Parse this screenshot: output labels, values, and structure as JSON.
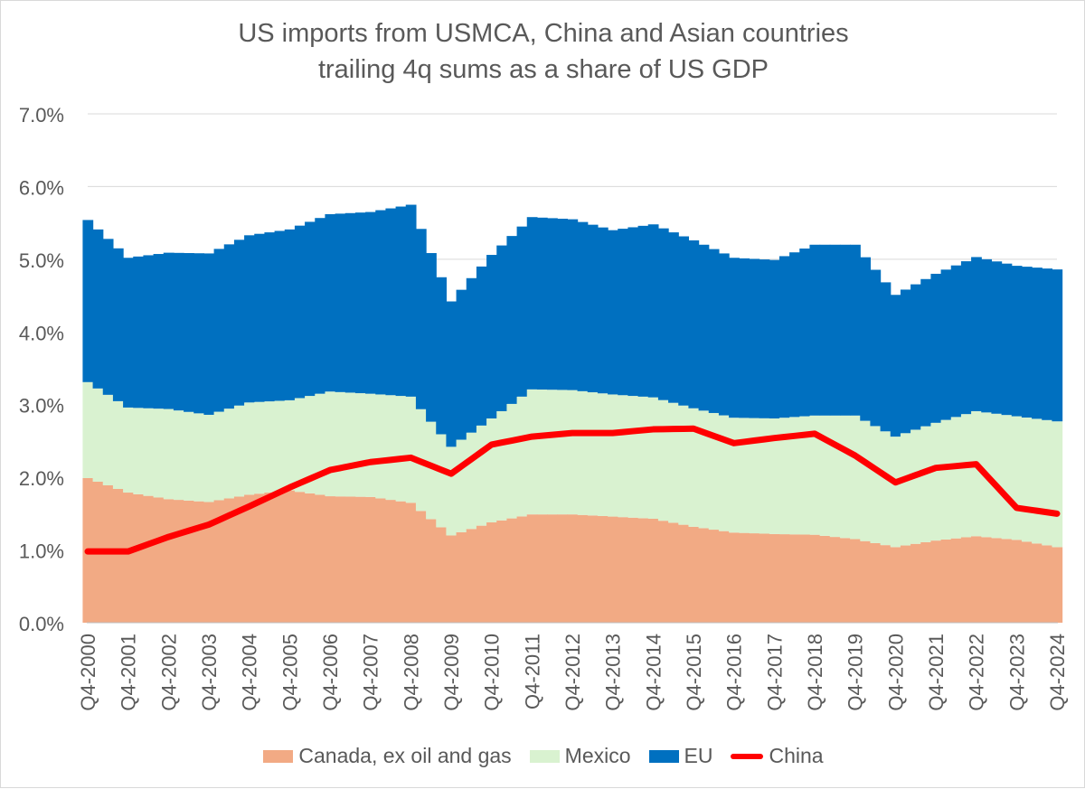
{
  "chart_data": {
    "type": "area",
    "title": "US imports from USMCA, China and Asian countries",
    "subtitle": "trailing 4q sums as a share of US GDP",
    "y_ticks": [
      "0.0%",
      "1.0%",
      "2.0%",
      "3.0%",
      "4.0%",
      "5.0%",
      "6.0%",
      "7.0%"
    ],
    "ylim": [
      0,
      7
    ],
    "x_tick_labels": [
      "Q4-2000",
      "Q4-2001",
      "Q4-2002",
      "Q4-2003",
      "Q4-2004",
      "Q4-2005",
      "Q4-2006",
      "Q4-2007",
      "Q4-2008",
      "Q4-2009",
      "Q4-2010",
      "Q4-2011",
      "Q4-2012",
      "Q4-2013",
      "Q4-2014",
      "Q4-2015",
      "Q4-2016",
      "Q4-2017",
      "Q4-2018",
      "Q4-2019",
      "Q4-2020",
      "Q4-2021",
      "Q4-2022",
      "Q4-2023",
      "Q4-2024"
    ],
    "x_annual": [
      2000,
      2001,
      2002,
      2003,
      2004,
      2005,
      2006,
      2007,
      2008,
      2009,
      2010,
      2011,
      2012,
      2013,
      2014,
      2015,
      2016,
      2017,
      2018,
      2019,
      2020,
      2021,
      2022,
      2023,
      2024
    ],
    "series": [
      {
        "name": "Canada, ex oil and gas",
        "kind": "stacked-area",
        "color": "#f2aa84",
        "values": [
          1.99,
          1.79,
          1.7,
          1.66,
          1.76,
          1.82,
          1.74,
          1.73,
          1.65,
          1.2,
          1.38,
          1.49,
          1.49,
          1.46,
          1.43,
          1.32,
          1.24,
          1.22,
          1.21,
          1.15,
          1.04,
          1.13,
          1.19,
          1.14,
          1.04
        ]
      },
      {
        "name": "Mexico",
        "kind": "stacked-area",
        "color": "#d9f2d0",
        "values": [
          1.32,
          1.17,
          1.24,
          1.2,
          1.27,
          1.24,
          1.44,
          1.42,
          1.46,
          1.22,
          1.43,
          1.72,
          1.71,
          1.68,
          1.67,
          1.63,
          1.58,
          1.59,
          1.64,
          1.7,
          1.52,
          1.62,
          1.72,
          1.7,
          1.73
        ]
      },
      {
        "name": "EU",
        "kind": "stacked-area",
        "color": "#0070c0",
        "values": [
          2.23,
          2.06,
          2.15,
          2.22,
          2.3,
          2.35,
          2.44,
          2.5,
          2.64,
          2.0,
          2.25,
          2.37,
          2.35,
          2.26,
          2.38,
          2.31,
          2.2,
          2.18,
          2.35,
          2.35,
          1.95,
          2.05,
          2.12,
          2.07,
          2.09
        ]
      },
      {
        "name": "China",
        "kind": "line",
        "color": "#ff0000",
        "values": [
          0.98,
          0.98,
          1.18,
          1.35,
          1.6,
          1.86,
          2.1,
          2.21,
          2.27,
          2.05,
          2.45,
          2.56,
          2.61,
          2.61,
          2.66,
          2.67,
          2.47,
          2.54,
          2.6,
          2.3,
          1.93,
          2.13,
          2.18,
          1.58,
          1.5
        ]
      }
    ],
    "legend_position": "bottom",
    "grid": true
  }
}
